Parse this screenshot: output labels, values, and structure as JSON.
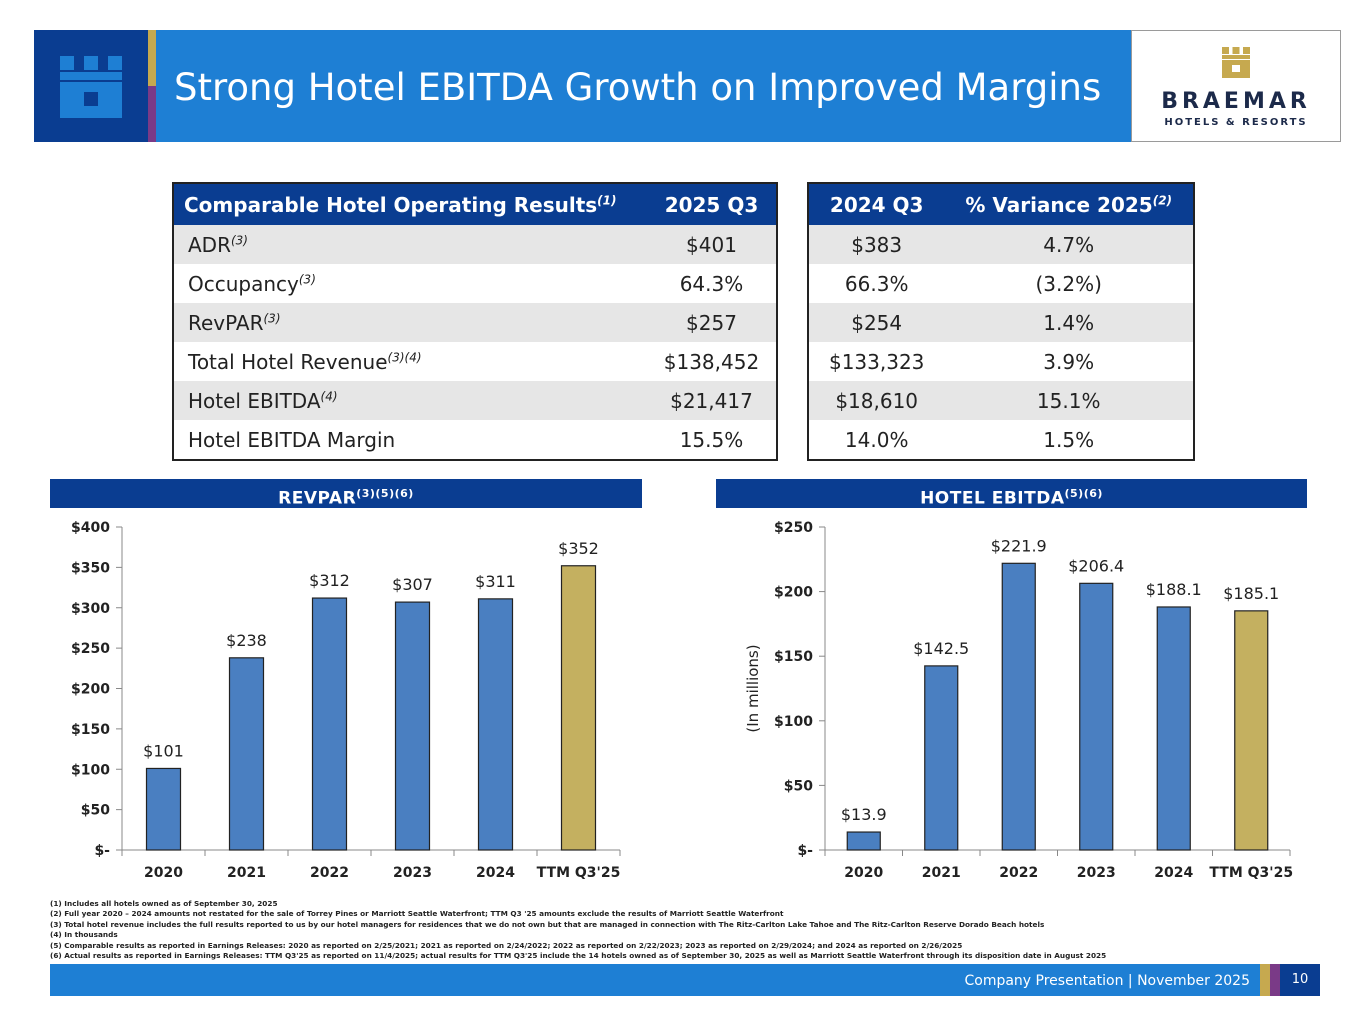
{
  "header": {
    "title": "Strong Hotel EBITDA Growth on Improved Margins",
    "brand_name": "BRAEMAR",
    "brand_sub": "HOTELS & RESORTS",
    "colors": {
      "navy": "#0a3d91",
      "blue": "#1e7fd4",
      "gold": "#c6a94f",
      "purple": "#7a3a87"
    }
  },
  "table": {
    "headers": {
      "metric": "Comparable Hotel Operating Results",
      "metric_sup": "(1)",
      "q3_2025": "2025 Q3",
      "q3_2024": "2024 Q3",
      "variance": "% Variance 2025",
      "variance_sup": "(2)"
    },
    "rows": [
      {
        "label": "ADR",
        "sup": "(3)",
        "q3_2025": "$401",
        "q3_2024": "$383",
        "variance": "4.7%"
      },
      {
        "label": "Occupancy",
        "sup": "(3)",
        "q3_2025": "64.3%",
        "q3_2024": "66.3%",
        "variance": "(3.2%)"
      },
      {
        "label": "RevPAR",
        "sup": "(3)",
        "q3_2025": "$257",
        "q3_2024": "$254",
        "variance": "1.4%"
      },
      {
        "label": "Total Hotel Revenue",
        "sup": "(3)(4)",
        "q3_2025": "$138,452",
        "q3_2024": "$133,323",
        "variance": "3.9%"
      },
      {
        "label": "Hotel EBITDA",
        "sup": "(4)",
        "q3_2025": "$21,417",
        "q3_2024": "$18,610",
        "variance": "15.1%"
      },
      {
        "label": "Hotel EBITDA Margin",
        "sup": "",
        "q3_2025": "15.5%",
        "q3_2024": "14.0%",
        "variance": "1.5%"
      }
    ]
  },
  "sections": {
    "revpar_title": "REVPAR",
    "revpar_sup": "(3)(5)(6)",
    "ebitda_title": "HOTEL EBITDA",
    "ebitda_sup": "(5)(6)"
  },
  "chart_data": [
    {
      "type": "bar",
      "title": "RevPAR",
      "categories": [
        "2020",
        "2021",
        "2022",
        "2023",
        "2024",
        "TTM Q3'25"
      ],
      "values": [
        101,
        238,
        312,
        307,
        311,
        352
      ],
      "data_labels": [
        "$101",
        "$238",
        "$312",
        "$307",
        "$311",
        "$352"
      ],
      "ylim": [
        0,
        400
      ],
      "yticks": [
        0,
        50,
        100,
        150,
        200,
        250,
        300,
        350,
        400
      ],
      "ytick_labels": [
        "$-",
        "$50",
        "$100",
        "$150",
        "$200",
        "$250",
        "$300",
        "$350",
        "$400"
      ],
      "ylabel": "",
      "bar_colors": [
        "#4a7fc1",
        "#4a7fc1",
        "#4a7fc1",
        "#4a7fc1",
        "#4a7fc1",
        "#c4b060"
      ],
      "grid": false
    },
    {
      "type": "bar",
      "title": "Hotel EBITDA",
      "categories": [
        "2020",
        "2021",
        "2022",
        "2023",
        "2024",
        "TTM Q3'25"
      ],
      "values": [
        13.9,
        142.5,
        221.9,
        206.4,
        188.1,
        185.1
      ],
      "data_labels": [
        "$13.9",
        "$142.5",
        "$221.9",
        "$206.4",
        "$188.1",
        "$185.1"
      ],
      "ylim": [
        0,
        250
      ],
      "yticks": [
        0,
        50,
        100,
        150,
        200,
        250
      ],
      "ytick_labels": [
        "$-",
        "$50",
        "$100",
        "$150",
        "$200",
        "$250"
      ],
      "ylabel": "(In millions)",
      "bar_colors": [
        "#4a7fc1",
        "#4a7fc1",
        "#4a7fc1",
        "#4a7fc1",
        "#4a7fc1",
        "#c4b060"
      ],
      "grid": false
    }
  ],
  "notes": [
    "(1) Includes all hotels owned as of September 30, 2025",
    "(2) Full year 2020 – 2024 amounts not restated for the sale of Torrey Pines or Marriott Seattle Waterfront; TTM Q3 '25 amounts exclude the results of Marriott Seattle Waterfront",
    "(3) Total hotel revenue includes the full results reported to us by our hotel managers for residences that we do not own but that are managed in connection with The Ritz-Carlton Lake Tahoe and The Ritz-Carlton Reserve Dorado Beach hotels",
    "(4) In thousands",
    "(5) Comparable results as reported in Earnings Releases: 2020 as reported on 2/25/2021; 2021 as reported on 2/24/2022; 2022 as reported on 2/22/2023; 2023 as reported on 2/29/2024; and 2024 as reported on 2/26/2025",
    "(6) Actual results as reported in Earnings Releases: TTM Q3'25 as reported on 11/4/2025; actual results for TTM Q3'25 include the 14  hotels owned as of September 30, 2025 as well as Marriott Seattle Waterfront through its disposition date in August 2025"
  ],
  "footer": {
    "text": "Company Presentation  |  November 2025",
    "page": "10"
  }
}
